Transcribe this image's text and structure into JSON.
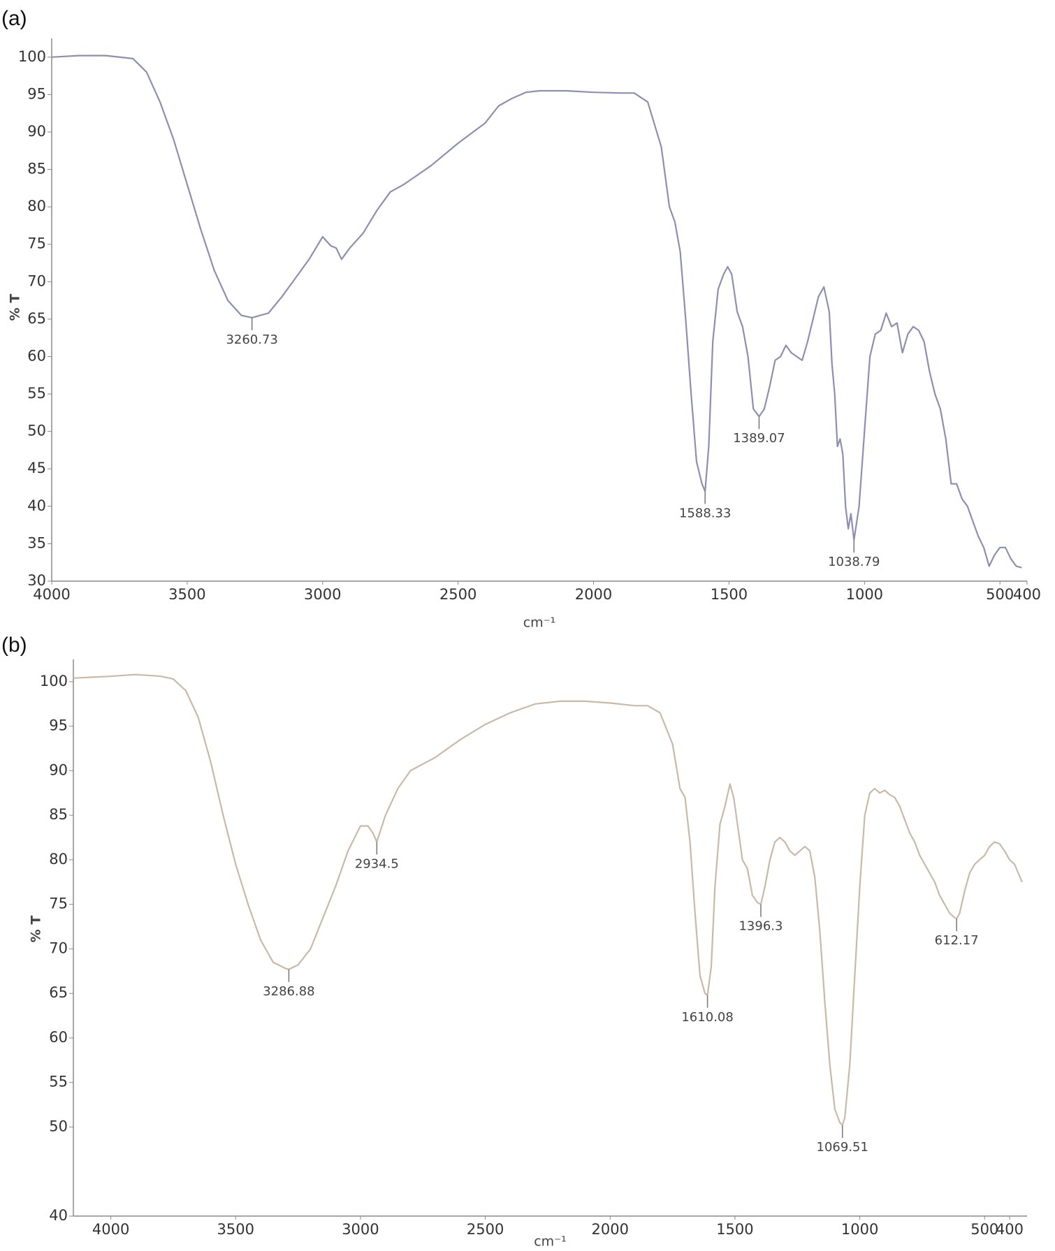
{
  "chart_data": [
    {
      "type": "line",
      "panel_label": "(a)",
      "ylabel": "% T",
      "xlabel": "cm⁻¹",
      "color": "#8e8eb4",
      "xlim": [
        4000,
        400
      ],
      "xticks": [
        4000,
        3500,
        3000,
        2500,
        2000,
        1500,
        1000,
        500,
        400
      ],
      "ylim": [
        30,
        102.5
      ],
      "yticks": [
        30,
        35,
        40,
        45,
        50,
        55,
        60,
        65,
        70,
        75,
        80,
        85,
        90,
        95,
        100
      ],
      "x": [
        4000,
        3900,
        3800,
        3700,
        3650,
        3600,
        3550,
        3500,
        3450,
        3400,
        3350,
        3300,
        3260.73,
        3200,
        3150,
        3100,
        3050,
        3000,
        2970,
        2950,
        2930,
        2900,
        2850,
        2800,
        2750,
        2700,
        2600,
        2500,
        2400,
        2350,
        2300,
        2250,
        2200,
        2100,
        2000,
        1900,
        1850,
        1800,
        1750,
        1720,
        1700,
        1680,
        1660,
        1640,
        1620,
        1600,
        1588.33,
        1575,
        1560,
        1540,
        1520,
        1505,
        1490,
        1470,
        1450,
        1430,
        1410,
        1389.07,
        1370,
        1350,
        1330,
        1310,
        1290,
        1270,
        1250,
        1230,
        1210,
        1190,
        1170,
        1150,
        1130,
        1120,
        1110,
        1100,
        1090,
        1080,
        1070,
        1060,
        1050,
        1038.79,
        1020,
        1000,
        980,
        960,
        940,
        920,
        900,
        880,
        860,
        840,
        820,
        800,
        780,
        760,
        740,
        720,
        700,
        680,
        660,
        640,
        620,
        600,
        580,
        560,
        540,
        520,
        500,
        480,
        460,
        440,
        420
      ],
      "values": [
        100,
        100.2,
        100.2,
        99.8,
        98,
        94,
        89,
        83,
        77,
        71.5,
        67.5,
        65.5,
        65.2,
        65.8,
        68,
        70.5,
        73,
        76,
        74.8,
        74.5,
        73,
        74.5,
        76.5,
        79.5,
        82,
        83,
        85.5,
        88.5,
        91.2,
        93.5,
        94.5,
        95.3,
        95.5,
        95.5,
        95.3,
        95.2,
        95.2,
        94,
        88,
        80,
        78,
        74,
        65,
        55,
        46,
        43,
        42,
        48,
        62,
        69,
        71,
        72,
        71,
        66,
        64,
        60,
        53,
        52,
        53,
        56,
        59.5,
        60,
        61.5,
        60.5,
        60,
        59.5,
        62,
        65,
        68,
        69.3,
        66,
        59,
        55,
        48,
        49,
        47,
        40,
        37,
        39,
        35.5,
        40,
        50,
        60,
        63,
        63.5,
        65.8,
        64,
        64.5,
        60.5,
        63,
        64,
        63.5,
        62,
        58,
        55,
        53,
        49,
        43,
        43,
        41,
        40,
        38,
        36,
        34.5,
        32,
        33.5,
        34.5,
        34.5,
        33,
        32,
        31.8
      ],
      "peaks": [
        3260.73,
        1588.33,
        1389.07,
        1038.79
      ]
    },
    {
      "type": "line",
      "panel_label": "(b)",
      "ylabel": "% T",
      "xlabel": "cm⁻¹",
      "color": "#cbb9a8",
      "xlim": [
        4150,
        330
      ],
      "xticks": [
        4000,
        3500,
        3000,
        2500,
        2000,
        1500,
        1000,
        500,
        400
      ],
      "ylim": [
        40,
        102.5
      ],
      "yticks": [
        40,
        50,
        55,
        60,
        65,
        70,
        75,
        80,
        85,
        90,
        95,
        100
      ],
      "x": [
        4150,
        4000,
        3900,
        3800,
        3750,
        3700,
        3650,
        3600,
        3550,
        3500,
        3450,
        3400,
        3350,
        3300,
        3286.88,
        3250,
        3200,
        3150,
        3100,
        3050,
        3000,
        2970,
        2950,
        2934.5,
        2900,
        2850,
        2800,
        2700,
        2600,
        2500,
        2400,
        2350,
        2300,
        2200,
        2100,
        2000,
        1900,
        1850,
        1800,
        1750,
        1720,
        1700,
        1680,
        1660,
        1640,
        1620,
        1610.08,
        1595,
        1580,
        1560,
        1540,
        1520,
        1505,
        1490,
        1470,
        1450,
        1430,
        1410,
        1396.3,
        1380,
        1360,
        1340,
        1320,
        1300,
        1280,
        1260,
        1240,
        1220,
        1200,
        1180,
        1160,
        1140,
        1120,
        1100,
        1080,
        1069.51,
        1060,
        1040,
        1020,
        1000,
        980,
        960,
        940,
        920,
        900,
        880,
        860,
        840,
        820,
        800,
        780,
        760,
        740,
        720,
        700,
        680,
        660,
        640,
        620,
        612.17,
        600,
        580,
        560,
        540,
        520,
        500,
        480,
        460,
        440,
        420,
        400,
        380,
        350
      ],
      "values": [
        100.4,
        100.6,
        100.8,
        100.6,
        100.3,
        99,
        96,
        91,
        85,
        79.5,
        75,
        71,
        68.5,
        67.8,
        67.7,
        68.2,
        70,
        73.5,
        77,
        81,
        83.8,
        83.8,
        83,
        82,
        85,
        88,
        90,
        91.5,
        93.5,
        95.2,
        96.5,
        97,
        97.5,
        97.8,
        97.8,
        97.6,
        97.3,
        97.3,
        96.5,
        93,
        88,
        87,
        82,
        74,
        67,
        65,
        64.8,
        68,
        77,
        84,
        86,
        88.5,
        87,
        84,
        80,
        79,
        76,
        75.2,
        75,
        77,
        80,
        82,
        82.5,
        82,
        81,
        80.5,
        81,
        81.5,
        81,
        78,
        72,
        64,
        57,
        52,
        50.5,
        50.2,
        51,
        57,
        67,
        77,
        85,
        87.5,
        88,
        87.5,
        87.8,
        87.3,
        87,
        86,
        84.5,
        83,
        82,
        80.5,
        79.5,
        78.5,
        77.5,
        76,
        75,
        74,
        73.5,
        73.4,
        74,
        76.5,
        78.5,
        79.5,
        80,
        80.5,
        81.5,
        82,
        81.8,
        81,
        80,
        79.5,
        77.5
      ],
      "peaks": [
        3286.88,
        2934.5,
        1610.08,
        1396.3,
        1069.51,
        612.17
      ]
    }
  ]
}
